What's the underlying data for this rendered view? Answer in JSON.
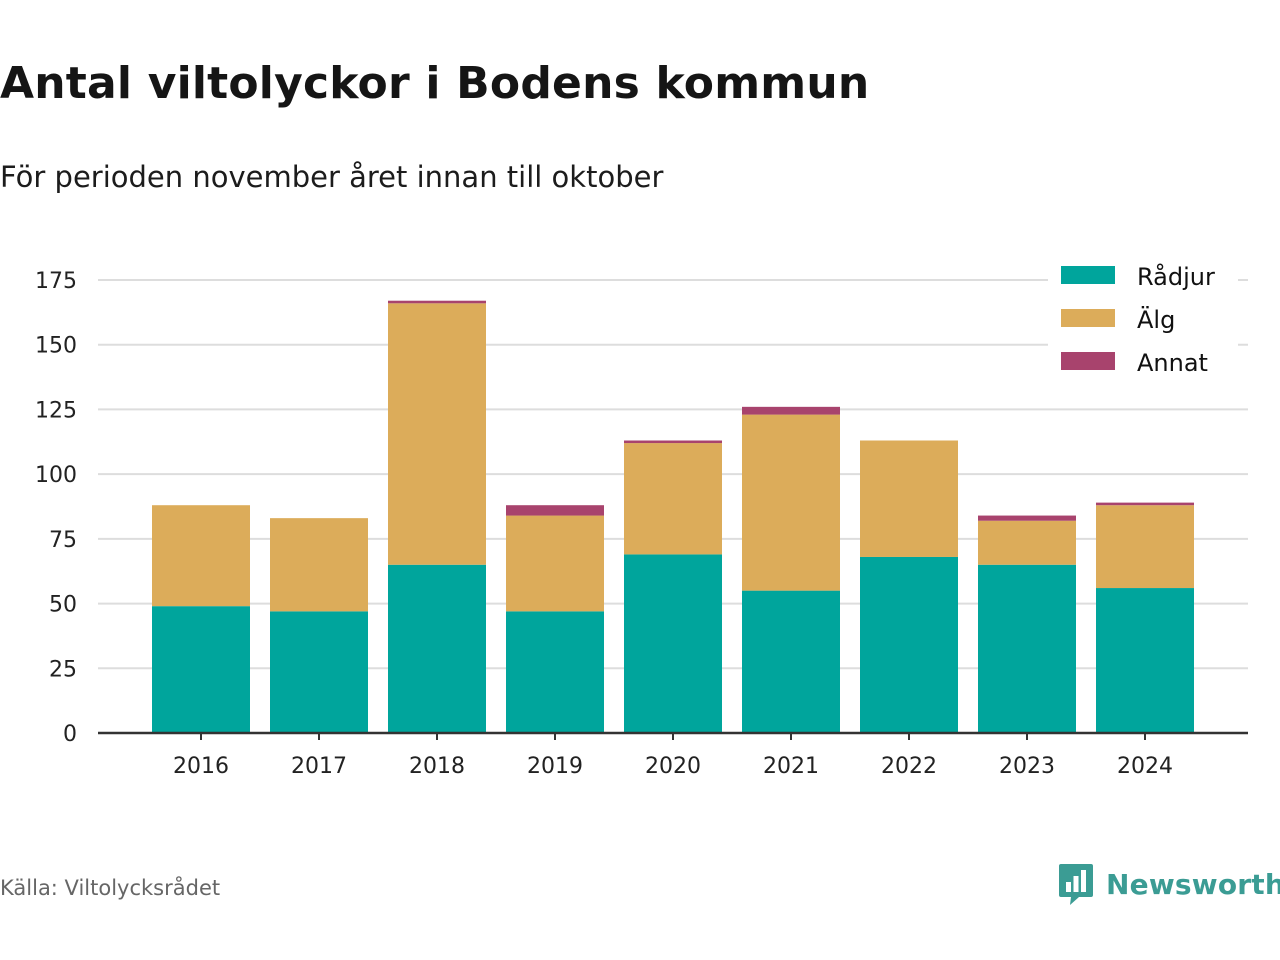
{
  "header": {
    "title": "Antal viltolyckor i Bodens kommun",
    "subtitle": "För perioden november året innan till oktober"
  },
  "footer": {
    "source": "Källa: Viltolycksrådet",
    "brand": "Newsworthy",
    "brand_icon": "bar-chart-speech-bubble-icon"
  },
  "colors": {
    "radjur": "#00a59c",
    "alg": "#dcac5a",
    "annat": "#a8436d",
    "brand": "#3b9c94",
    "grid": "#dddddd",
    "axis": "#333333"
  },
  "chart_data": {
    "type": "bar",
    "stacked": true,
    "categories": [
      "2016",
      "2017",
      "2018",
      "2019",
      "2020",
      "2021",
      "2022",
      "2023",
      "2024"
    ],
    "series": [
      {
        "name": "Rådjur",
        "values": [
          49,
          47,
          65,
          47,
          69,
          55,
          68,
          65,
          56
        ],
        "color": "#00a59c"
      },
      {
        "name": "Älg",
        "values": [
          39,
          36,
          101,
          37,
          43,
          68,
          45,
          17,
          32
        ],
        "color": "#dcac5a"
      },
      {
        "name": "Annat",
        "values": [
          0,
          0,
          1,
          4,
          1,
          3,
          0,
          2,
          1
        ],
        "color": "#a8436d"
      }
    ],
    "ylim": [
      0,
      175
    ],
    "yticks": [
      0,
      25,
      50,
      75,
      100,
      125,
      150,
      175
    ],
    "grid": true,
    "legend_position": "top-right"
  }
}
